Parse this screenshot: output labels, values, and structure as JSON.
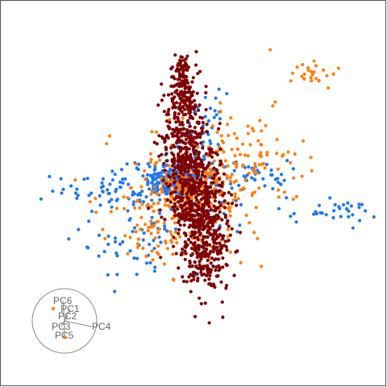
{
  "chart_data": {
    "type": "scatter",
    "title": "",
    "xlabel": "",
    "ylabel": "",
    "grid": false,
    "legend": "none",
    "xlim": [
      -1,
      1
    ],
    "ylim": [
      -1,
      1
    ],
    "series": [
      {
        "color": "#1f78f0",
        "count": 520,
        "clusters": [
          {
            "weight": 0.42,
            "cx": -0.1,
            "cy": 0.08,
            "sx": 0.08,
            "sy": 0.05
          },
          {
            "weight": 0.12,
            "cx": -0.45,
            "cy": 0.02,
            "sx": 0.15,
            "sy": 0.06
          },
          {
            "weight": 0.09,
            "cx": -0.32,
            "cy": -0.25,
            "sx": 0.14,
            "sy": 0.12
          },
          {
            "weight": 0.07,
            "cx": 0.35,
            "cy": 0.1,
            "sx": 0.08,
            "sy": 0.04
          },
          {
            "weight": 0.06,
            "cx": 0.75,
            "cy": -0.1,
            "sx": 0.12,
            "sy": 0.03
          },
          {
            "weight": 0.1,
            "cx": 0.05,
            "cy": 0.3,
            "sx": 0.06,
            "sy": 0.12
          },
          {
            "weight": 0.14,
            "cx": 0.02,
            "cy": -0.05,
            "sx": 0.25,
            "sy": 0.14
          }
        ]
      },
      {
        "color": "#ff7f0e",
        "count": 480,
        "clusters": [
          {
            "weight": 0.45,
            "cx": 0.0,
            "cy": 0.02,
            "sx": 0.11,
            "sy": 0.09
          },
          {
            "weight": 0.15,
            "cx": 0.3,
            "cy": 0.2,
            "sx": 0.15,
            "sy": 0.12
          },
          {
            "weight": 0.12,
            "cx": -0.22,
            "cy": -0.2,
            "sx": 0.12,
            "sy": 0.1
          },
          {
            "weight": 0.05,
            "cx": 0.65,
            "cy": 0.65,
            "sx": 0.06,
            "sy": 0.04
          },
          {
            "weight": 0.23,
            "cx": 0.05,
            "cy": 0.02,
            "sx": 0.22,
            "sy": 0.22
          }
        ]
      },
      {
        "color": "#7f0000",
        "count": 1100,
        "clusters": [
          {
            "weight": 0.3,
            "cx": -0.05,
            "cy": 0.3,
            "sx": 0.06,
            "sy": 0.18
          },
          {
            "weight": 0.45,
            "cx": 0.03,
            "cy": -0.05,
            "sx": 0.07,
            "sy": 0.16
          },
          {
            "weight": 0.15,
            "cx": 0.08,
            "cy": -0.35,
            "sx": 0.06,
            "sy": 0.12
          },
          {
            "weight": 0.1,
            "cx": -0.06,
            "cy": 0.6,
            "sx": 0.03,
            "sy": 0.08
          }
        ]
      }
    ],
    "biplot": {
      "circle_color": "#888888",
      "label_color": "#666666",
      "dot_color": "#ff7f0e",
      "axes": [
        {
          "name": "PC6",
          "x": -0.05,
          "y": 0.62
        },
        {
          "name": "PC1",
          "x": 0.18,
          "y": 0.38
        },
        {
          "name": "PC2",
          "x": 0.1,
          "y": 0.15
        },
        {
          "name": "PC3",
          "x": -0.1,
          "y": -0.18
        },
        {
          "name": "PC4",
          "x": 0.85,
          "y": -0.18
        },
        {
          "name": "PC5",
          "x": 0.0,
          "y": -0.45
        }
      ]
    }
  }
}
